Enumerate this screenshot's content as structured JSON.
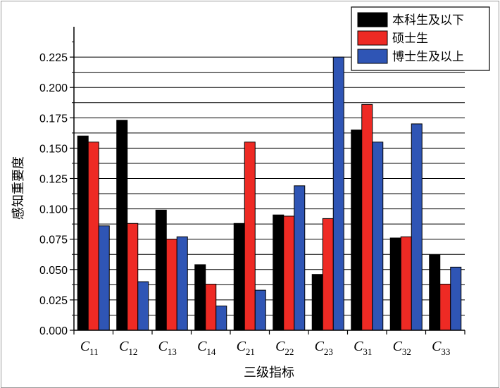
{
  "chart_data": {
    "type": "bar",
    "categories": [
      {
        "base": "C",
        "sub": "11"
      },
      {
        "base": "C",
        "sub": "12"
      },
      {
        "base": "C",
        "sub": "13"
      },
      {
        "base": "C",
        "sub": "14"
      },
      {
        "base": "C",
        "sub": "21"
      },
      {
        "base": "C",
        "sub": "22"
      },
      {
        "base": "C",
        "sub": "23"
      },
      {
        "base": "C",
        "sub": "31"
      },
      {
        "base": "C",
        "sub": "32"
      },
      {
        "base": "C",
        "sub": "33"
      }
    ],
    "series": [
      {
        "name": "本科生及以下",
        "color": "#000000",
        "values": [
          0.16,
          0.173,
          0.099,
          0.054,
          0.088,
          0.095,
          0.046,
          0.165,
          0.076,
          0.062
        ]
      },
      {
        "name": "硕士生",
        "color": "#ee2a24",
        "values": [
          0.155,
          0.088,
          0.075,
          0.038,
          0.155,
          0.094,
          0.092,
          0.186,
          0.077,
          0.038
        ]
      },
      {
        "name": "博士生及以上",
        "color": "#2f55b5",
        "values": [
          0.086,
          0.04,
          0.077,
          0.02,
          0.033,
          0.119,
          0.225,
          0.155,
          0.17,
          0.052
        ]
      }
    ],
    "xlabel": "三级指标",
    "ylabel": "感知重要度",
    "ylim": [
      0,
      0.25
    ],
    "yticks": [
      0.0,
      0.025,
      0.05,
      0.075,
      0.1,
      0.125,
      0.15,
      0.175,
      0.2,
      0.225
    ],
    "ytick_labels": [
      "0.000",
      "0.025",
      "0.050",
      "0.075",
      "0.100",
      "0.125",
      "0.150",
      "0.175",
      "0.200",
      "0.225"
    ],
    "grid": "horizontal",
    "legend_position": "top-right"
  }
}
